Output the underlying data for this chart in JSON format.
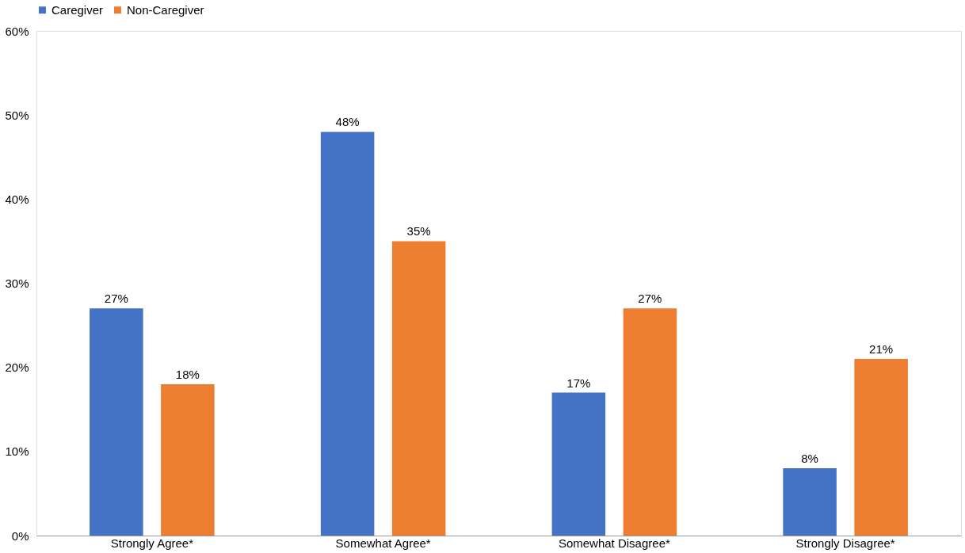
{
  "chart_data": {
    "type": "bar",
    "categories": [
      "Strongly Agree*",
      "Somewhat Agree*",
      "Somewhat Disagree*",
      "Strongly Disagree*"
    ],
    "series": [
      {
        "name": "Caregiver",
        "color": "#4472c4",
        "values": [
          27,
          48,
          17,
          8
        ],
        "value_labels": [
          "27%",
          "48%",
          "17%",
          "8%"
        ]
      },
      {
        "name": "Non-Caregiver",
        "color": "#ed7d31",
        "values": [
          18,
          35,
          27,
          21
        ],
        "value_labels": [
          "18%",
          "35%",
          "27%",
          "21%"
        ]
      }
    ],
    "ylim": [
      0,
      60
    ],
    "yticks": [
      {
        "value": 0,
        "label": "0%"
      },
      {
        "value": 10,
        "label": "10%"
      },
      {
        "value": 20,
        "label": "20%"
      },
      {
        "value": 30,
        "label": "30%"
      },
      {
        "value": 40,
        "label": "40%"
      },
      {
        "value": 50,
        "label": "50%"
      },
      {
        "value": 60,
        "label": "60%"
      }
    ],
    "grid": false,
    "legend": "top"
  }
}
